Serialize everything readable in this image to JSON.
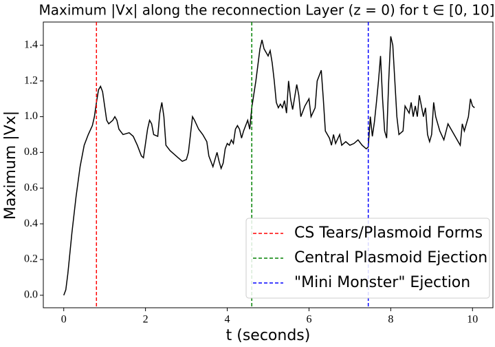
{
  "chart_data": {
    "type": "line",
    "title": "Maximum |Vx| along the reconnection Layer (z = 0) for t ∈ [0, 10]",
    "x_label": "t (seconds)",
    "y_label": "Maximum |Vx|",
    "x": [
      0.0,
      0.05,
      0.1,
      0.2,
      0.3,
      0.4,
      0.5,
      0.6,
      0.7,
      0.75,
      0.8,
      0.85,
      0.9,
      0.95,
      1.0,
      1.05,
      1.1,
      1.2,
      1.25,
      1.3,
      1.35,
      1.45,
      1.6,
      1.7,
      1.8,
      1.9,
      1.95,
      2.0,
      2.05,
      2.1,
      2.15,
      2.2,
      2.3,
      2.35,
      2.4,
      2.45,
      2.5,
      2.6,
      2.7,
      2.8,
      2.9,
      3.0,
      3.05,
      3.1,
      3.15,
      3.2,
      3.3,
      3.4,
      3.5,
      3.55,
      3.65,
      3.7,
      3.75,
      3.8,
      3.85,
      3.9,
      3.95,
      4.0,
      4.05,
      4.1,
      4.15,
      4.2,
      4.25,
      4.3,
      4.35,
      4.4,
      4.5,
      4.55,
      4.6,
      4.7,
      4.8,
      4.85,
      4.9,
      4.95,
      5.0,
      5.05,
      5.1,
      5.15,
      5.2,
      5.25,
      5.3,
      5.35,
      5.4,
      5.45,
      5.5,
      5.55,
      5.6,
      5.7,
      5.75,
      5.8,
      5.9,
      6.0,
      6.05,
      6.15,
      6.2,
      6.3,
      6.35,
      6.4,
      6.5,
      6.55,
      6.6,
      6.65,
      6.75,
      6.8,
      6.9,
      7.0,
      7.1,
      7.2,
      7.3,
      7.4,
      7.45,
      7.5,
      7.55,
      7.6,
      7.65,
      7.7,
      7.75,
      7.8,
      7.85,
      7.9,
      7.95,
      8.0,
      8.05,
      8.1,
      8.15,
      8.2,
      8.3,
      8.35,
      8.45,
      8.5,
      8.55,
      8.6,
      8.65,
      8.7,
      8.8,
      8.85,
      8.9,
      8.95,
      9.0,
      9.05,
      9.1,
      9.2,
      9.3,
      9.4,
      9.5,
      9.6,
      9.7,
      9.75,
      9.8,
      9.9,
      9.95,
      10.0,
      10.05
    ],
    "series": [
      {
        "color": "#000000",
        "values": [
          0.0,
          0.03,
          0.12,
          0.35,
          0.55,
          0.72,
          0.84,
          0.9,
          0.95,
          1.0,
          1.08,
          1.15,
          1.17,
          1.14,
          1.06,
          0.98,
          0.96,
          0.98,
          1.0,
          0.98,
          0.93,
          0.9,
          0.91,
          0.89,
          0.84,
          0.78,
          0.77,
          0.85,
          0.93,
          0.98,
          0.96,
          0.9,
          0.89,
          1.02,
          1.08,
          1.0,
          0.84,
          0.81,
          0.79,
          0.77,
          0.75,
          0.76,
          0.8,
          0.9,
          1.0,
          0.98,
          0.93,
          0.9,
          0.86,
          0.78,
          0.72,
          0.76,
          0.8,
          0.75,
          0.71,
          0.74,
          0.82,
          0.85,
          0.84,
          0.87,
          0.85,
          0.93,
          0.95,
          0.93,
          0.88,
          0.92,
          0.98,
          0.93,
          1.05,
          1.2,
          1.38,
          1.43,
          1.38,
          1.36,
          1.34,
          1.37,
          1.3,
          1.2,
          1.08,
          1.05,
          1.07,
          1.05,
          1.09,
          1.02,
          1.2,
          1.1,
          1.04,
          1.18,
          1.12,
          1.0,
          1.06,
          1.1,
          1.0,
          1.05,
          1.2,
          1.26,
          1.1,
          0.92,
          0.88,
          0.84,
          0.9,
          0.85,
          0.9,
          0.84,
          0.86,
          0.84,
          0.85,
          0.87,
          0.84,
          0.82,
          0.83,
          1.0,
          0.89,
          0.97,
          1.08,
          1.2,
          1.34,
          1.1,
          0.92,
          0.88,
          1.2,
          1.45,
          1.4,
          1.2,
          1.0,
          0.9,
          0.92,
          1.06,
          1.02,
          1.08,
          1.0,
          1.06,
          1.0,
          1.12,
          1.0,
          1.05,
          0.9,
          0.86,
          0.9,
          1.08,
          1.0,
          0.92,
          0.87,
          0.96,
          0.92,
          0.88,
          0.84,
          0.96,
          0.92,
          1.0,
          1.1,
          1.06,
          1.05
        ]
      }
    ],
    "vlines": [
      {
        "name": "CS Tears/Plasmoid Forms",
        "color": "#ff0000",
        "x": 0.8
      },
      {
        "name": "Central Plasmoid Ejection",
        "color": "#008000",
        "x": 4.6
      },
      {
        "name": "\"Mini Monster\" Ejection",
        "color": "#0000ff",
        "x": 7.45
      }
    ],
    "xlim": [
      -0.5,
      10.5
    ],
    "ylim": [
      -0.07,
      1.53
    ],
    "xticks": [
      0,
      2,
      4,
      6,
      8,
      10
    ],
    "yticks": [
      {
        "value": 0,
        "label": "0.0"
      },
      {
        "value": 0.2,
        "label": "0.2"
      },
      {
        "value": 0.4,
        "label": "0.4"
      },
      {
        "value": 0.6,
        "label": "0.6"
      },
      {
        "value": 0.8,
        "label": "0.8"
      },
      {
        "value": 1.0,
        "label": "1.0"
      },
      {
        "value": 1.2,
        "label": "1.2"
      },
      {
        "value": 1.4,
        "label": "1.4"
      }
    ],
    "legend": "lower right"
  }
}
